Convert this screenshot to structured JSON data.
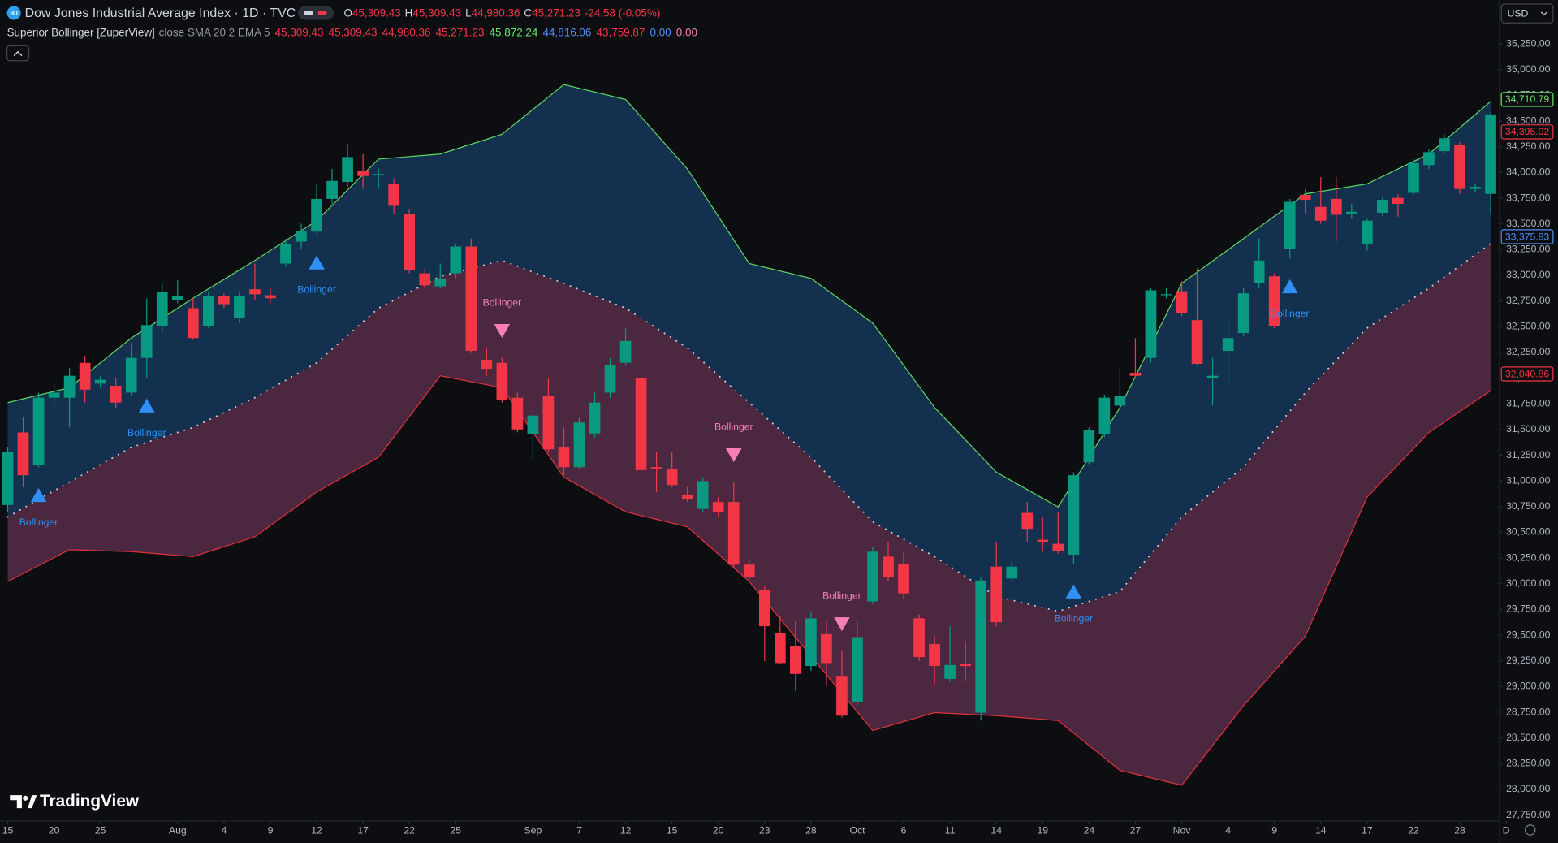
{
  "header": {
    "badge": "30",
    "symbol": "Dow Jones Industrial Average Index · 1D · TVC",
    "ohlc": [
      {
        "key": "O",
        "value": "45,309.43"
      },
      {
        "key": "H",
        "value": "45,309.43"
      },
      {
        "key": "L",
        "value": "44,980.36"
      },
      {
        "key": "C",
        "value": "45,271.23"
      }
    ],
    "change": "-24.58 (-0.05%)",
    "value_color": "#f23645"
  },
  "indicator": {
    "name": "Superior Bollinger [ZuperView]",
    "params": "close SMA 20 2 EMA 5",
    "values": [
      {
        "text": "45,309.43",
        "color": "#f23645"
      },
      {
        "text": "45,309.43",
        "color": "#f23645"
      },
      {
        "text": "44,980.36",
        "color": "#f23645"
      },
      {
        "text": "45,271.23",
        "color": "#f23645"
      },
      {
        "text": "45,872.24",
        "color": "#66e36b"
      },
      {
        "text": "44,816.06",
        "color": "#4f8ff7"
      },
      {
        "text": "43,759.87",
        "color": "#f23645"
      },
      {
        "text": "0.00",
        "color": "#4f8ff7"
      },
      {
        "text": "0.00",
        "color": "#f77fb4"
      }
    ]
  },
  "currency": "USD",
  "brand": "TradingView",
  "chart_data": {
    "type": "candlestick",
    "grid": false,
    "xlim": [
      -0.5,
      96.5
    ],
    "xticks": [
      {
        "value": 0,
        "label": "15"
      },
      {
        "value": 3,
        "label": "20"
      },
      {
        "value": 6,
        "label": "25"
      },
      {
        "value": 11,
        "label": "Aug"
      },
      {
        "value": 14,
        "label": "4"
      },
      {
        "value": 17,
        "label": "9"
      },
      {
        "value": 20,
        "label": "12"
      },
      {
        "value": 23,
        "label": "17"
      },
      {
        "value": 26,
        "label": "22"
      },
      {
        "value": 29,
        "label": "25"
      },
      {
        "value": 34,
        "label": "Sep"
      },
      {
        "value": 37,
        "label": "7"
      },
      {
        "value": 40,
        "label": "12"
      },
      {
        "value": 43,
        "label": "15"
      },
      {
        "value": 46,
        "label": "20"
      },
      {
        "value": 49,
        "label": "23"
      },
      {
        "value": 52,
        "label": "28"
      },
      {
        "value": 55,
        "label": "Oct"
      },
      {
        "value": 58,
        "label": "6"
      },
      {
        "value": 61,
        "label": "11"
      },
      {
        "value": 64,
        "label": "14"
      },
      {
        "value": 67,
        "label": "19"
      },
      {
        "value": 70,
        "label": "24"
      },
      {
        "value": 73,
        "label": "27"
      },
      {
        "value": 76,
        "label": "Nov"
      },
      {
        "value": 79,
        "label": "4"
      },
      {
        "value": 82,
        "label": "9"
      },
      {
        "value": 85,
        "label": "14"
      },
      {
        "value": 88,
        "label": "17"
      },
      {
        "value": 91,
        "label": "22"
      },
      {
        "value": 94,
        "label": "28"
      },
      {
        "value": 97,
        "label": "D"
      }
    ],
    "ylim": [
      27692,
      35677
    ],
    "yticks": [
      {
        "value": 27750,
        "label": "27,750.00"
      },
      {
        "value": 28000,
        "label": "28,000.00"
      },
      {
        "value": 28250,
        "label": "28,250.00"
      },
      {
        "value": 28500,
        "label": "28,500.00"
      },
      {
        "value": 28750,
        "label": "28,750.00"
      },
      {
        "value": 29000,
        "label": "29,000.00"
      },
      {
        "value": 29250,
        "label": "29,250.00"
      },
      {
        "value": 29500,
        "label": "29,500.00"
      },
      {
        "value": 29750,
        "label": "29,750.00"
      },
      {
        "value": 30000,
        "label": "30,000.00"
      },
      {
        "value": 30250,
        "label": "30,250.00"
      },
      {
        "value": 30500,
        "label": "30,500.00"
      },
      {
        "value": 30750,
        "label": "30,750.00"
      },
      {
        "value": 31000,
        "label": "31,000.00"
      },
      {
        "value": 31250,
        "label": "31,250.00"
      },
      {
        "value": 31500,
        "label": "31,500.00"
      },
      {
        "value": 31750,
        "label": "31,750.00"
      },
      {
        "value": 32000,
        "label": "32,000.00"
      },
      {
        "value": 32250,
        "label": "32,250.00"
      },
      {
        "value": 32500,
        "label": "32,500.00"
      },
      {
        "value": 32750,
        "label": "32,750.00"
      },
      {
        "value": 33000,
        "label": "33,000.00"
      },
      {
        "value": 33250,
        "label": "33,250.00"
      },
      {
        "value": 33500,
        "label": "33,500.00"
      },
      {
        "value": 33750,
        "label": "33,750.00"
      },
      {
        "value": 34000,
        "label": "34,000.00"
      },
      {
        "value": 34250,
        "label": "34,250.00"
      },
      {
        "value": 34500,
        "label": "34,500.00"
      },
      {
        "value": 34750,
        "label": "34,750.00"
      },
      {
        "value": 35000,
        "label": "35,000.00"
      },
      {
        "value": 35250,
        "label": "35,250.00"
      }
    ],
    "candles": {
      "up_color": "#089981",
      "down_color": "#f23645",
      "open": [
        30766,
        31472,
        31153,
        31810,
        31810,
        32149,
        31946,
        31926,
        31859,
        32197,
        32506,
        32758,
        32680,
        32506,
        32796,
        32584,
        32864,
        32806,
        33115,
        33328,
        33425,
        33743,
        33908,
        34014,
        33976,
        33889,
        33599,
        33019,
        32893,
        33019,
        33280,
        32178,
        32149,
        31810,
        31453,
        31830,
        31327,
        31134,
        31462,
        31859,
        32149,
        32004,
        31134,
        31114,
        30863,
        30728,
        30795,
        30795,
        30186,
        29935,
        29519,
        29393,
        29200,
        29510,
        29104,
        28852,
        29829,
        30264,
        30196,
        29664,
        29413,
        29075,
        29220,
        28746,
        30167,
        30051,
        30689,
        30428,
        30389,
        30283,
        31182,
        31453,
        31733,
        32052,
        32197,
        32806,
        32845,
        32564,
        32004,
        32265,
        32439,
        32922,
        32990,
        33260,
        33782,
        33666,
        33743,
        33599,
        33309,
        33608,
        33753,
        33802,
        34072,
        34208,
        34266,
        33840,
        33792
      ],
      "high": [
        31327,
        31617,
        31859,
        31955,
        32100,
        32216,
        32023,
        32004,
        32342,
        32777,
        32922,
        32951,
        32777,
        32845,
        32825,
        32845,
        33115,
        32874,
        33357,
        33502,
        33889,
        34034,
        34275,
        34179,
        34034,
        33937,
        33647,
        33067,
        33115,
        33309,
        33357,
        32293,
        32197,
        31859,
        31694,
        32004,
        31520,
        31617,
        31859,
        32197,
        32487,
        32023,
        31279,
        31279,
        30940,
        31037,
        30843,
        30989,
        30235,
        29974,
        29684,
        29635,
        29732,
        29635,
        29345,
        29635,
        30360,
        30409,
        30312,
        29703,
        29490,
        29587,
        29442,
        30070,
        30409,
        30215,
        30795,
        30650,
        30699,
        31085,
        31520,
        31839,
        32100,
        32390,
        32874,
        32874,
        32941,
        33067,
        32197,
        32584,
        32874,
        33357,
        33019,
        33743,
        33840,
        33956,
        33956,
        33695,
        33550,
        33763,
        33792,
        34130,
        34227,
        34372,
        34295,
        33889,
        34594
      ],
      "low": [
        30699,
        30940,
        31134,
        31733,
        31520,
        31762,
        31907,
        31714,
        31830,
        32004,
        32439,
        32729,
        32371,
        32487,
        32680,
        32535,
        32758,
        32729,
        33086,
        33260,
        33396,
        33695,
        33860,
        33840,
        33840,
        33599,
        33019,
        32874,
        32874,
        32970,
        32245,
        32023,
        31762,
        31472,
        31211,
        31279,
        31056,
        31114,
        31424,
        31810,
        32120,
        31056,
        30892,
        30940,
        30795,
        30699,
        30650,
        30148,
        30041,
        29249,
        29220,
        28959,
        29152,
        29007,
        28698,
        28814,
        29800,
        30022,
        29848,
        29249,
        29026,
        29046,
        29055,
        28669,
        29587,
        30022,
        30409,
        30312,
        30293,
        30196,
        31163,
        31424,
        31714,
        32004,
        32149,
        32777,
        32603,
        32120,
        31733,
        31926,
        32410,
        32874,
        32487,
        33164,
        33599,
        33502,
        33328,
        33550,
        33241,
        33579,
        33570,
        33782,
        34034,
        34179,
        33792,
        33811,
        33599
      ],
      "close": [
        31279,
        31056,
        31810,
        31859,
        32023,
        31888,
        31984,
        31762,
        32197,
        32516,
        32835,
        32796,
        32390,
        32796,
        32719,
        32796,
        32816,
        32777,
        33309,
        33434,
        33743,
        33918,
        34150,
        33966,
        33985,
        33676,
        33048,
        32903,
        32961,
        33280,
        32265,
        32091,
        31791,
        31501,
        31636,
        31308,
        31134,
        31569,
        31762,
        32129,
        32361,
        31105,
        31114,
        30960,
        30824,
        30998,
        30699,
        30186,
        30061,
        29587,
        29229,
        29123,
        29664,
        29229,
        28717,
        29481,
        30312,
        30061,
        29906,
        29287,
        29200,
        29210,
        29200,
        30032,
        29626,
        30167,
        30534,
        30409,
        30322,
        31056,
        31491,
        31810,
        31830,
        32023,
        32854,
        32816,
        32632,
        32139,
        32023,
        32390,
        32825,
        33144,
        32506,
        33715,
        33734,
        33531,
        33589,
        33618,
        33531,
        33734,
        33695,
        34092,
        34198,
        34333,
        33840,
        33860,
        34565
      ]
    },
    "bands": {
      "x": [
        0,
        4,
        8,
        12,
        16,
        20,
        24,
        28,
        32,
        36,
        40,
        44,
        48,
        52,
        56,
        60,
        64,
        68,
        72,
        76,
        80,
        84,
        88,
        92,
        96
      ],
      "upper": {
        "color": "#5fd85f",
        "values": [
          31762,
          31907,
          32390,
          32777,
          33144,
          33531,
          34130,
          34179,
          34372,
          34855,
          34710,
          34034,
          33115,
          32970,
          32535,
          31714,
          31085,
          30747,
          31714,
          32922,
          33357,
          33792,
          33889,
          34179,
          34691
        ]
      },
      "basis": {
        "color": "#c9cfda",
        "values": [
          30650,
          30989,
          31327,
          31520,
          31810,
          32149,
          32680,
          32990,
          33144,
          32922,
          32680,
          32293,
          31762,
          31230,
          30602,
          30264,
          29877,
          29732,
          29925,
          30650,
          31134,
          31859,
          32487,
          32874,
          33309
        ]
      },
      "lower": {
        "color": "#e0303a",
        "values": [
          30022,
          30331,
          30312,
          30264,
          30457,
          30892,
          31230,
          32023,
          31907,
          31037,
          30699,
          30554,
          30022,
          29297,
          28572,
          28746,
          28717,
          28669,
          28185,
          28040,
          28814,
          29490,
          30843,
          31472,
          31878
        ]
      },
      "upper_fill": "#13304f",
      "lower_fill": "#4b2840"
    },
    "signals": [
      {
        "index": 2,
        "direction": "up",
        "label": "Bollinger",
        "color": "#2f8ff5"
      },
      {
        "index": 9,
        "direction": "up",
        "label": "Bollinger",
        "color": "#2f8ff5"
      },
      {
        "index": 20,
        "direction": "up",
        "label": "Bollinger",
        "color": "#2f8ff5"
      },
      {
        "index": 32,
        "direction": "down",
        "label": "Bollinger",
        "color": "#f77fb4"
      },
      {
        "index": 47,
        "direction": "down",
        "label": "Bollinger",
        "color": "#f77fb4"
      },
      {
        "index": 54,
        "direction": "down",
        "label": "Bollinger",
        "color": "#f77fb4"
      },
      {
        "index": 69,
        "direction": "up",
        "label": "Bollinger",
        "color": "#2f8ff5"
      },
      {
        "index": 83,
        "direction": "up",
        "label": "Bollinger",
        "color": "#2f8ff5"
      }
    ],
    "price_labels": [
      {
        "value": 34710.79,
        "label": "34,710.79",
        "color": "#66e36b"
      },
      {
        "value": 34395.02,
        "label": "34,395.02",
        "color": "#f23645"
      },
      {
        "value": 33375.83,
        "label": "33,375.83",
        "color": "#4f8ff7"
      },
      {
        "value": 32040.86,
        "label": "32,040.86",
        "color": "#f23645"
      }
    ]
  }
}
